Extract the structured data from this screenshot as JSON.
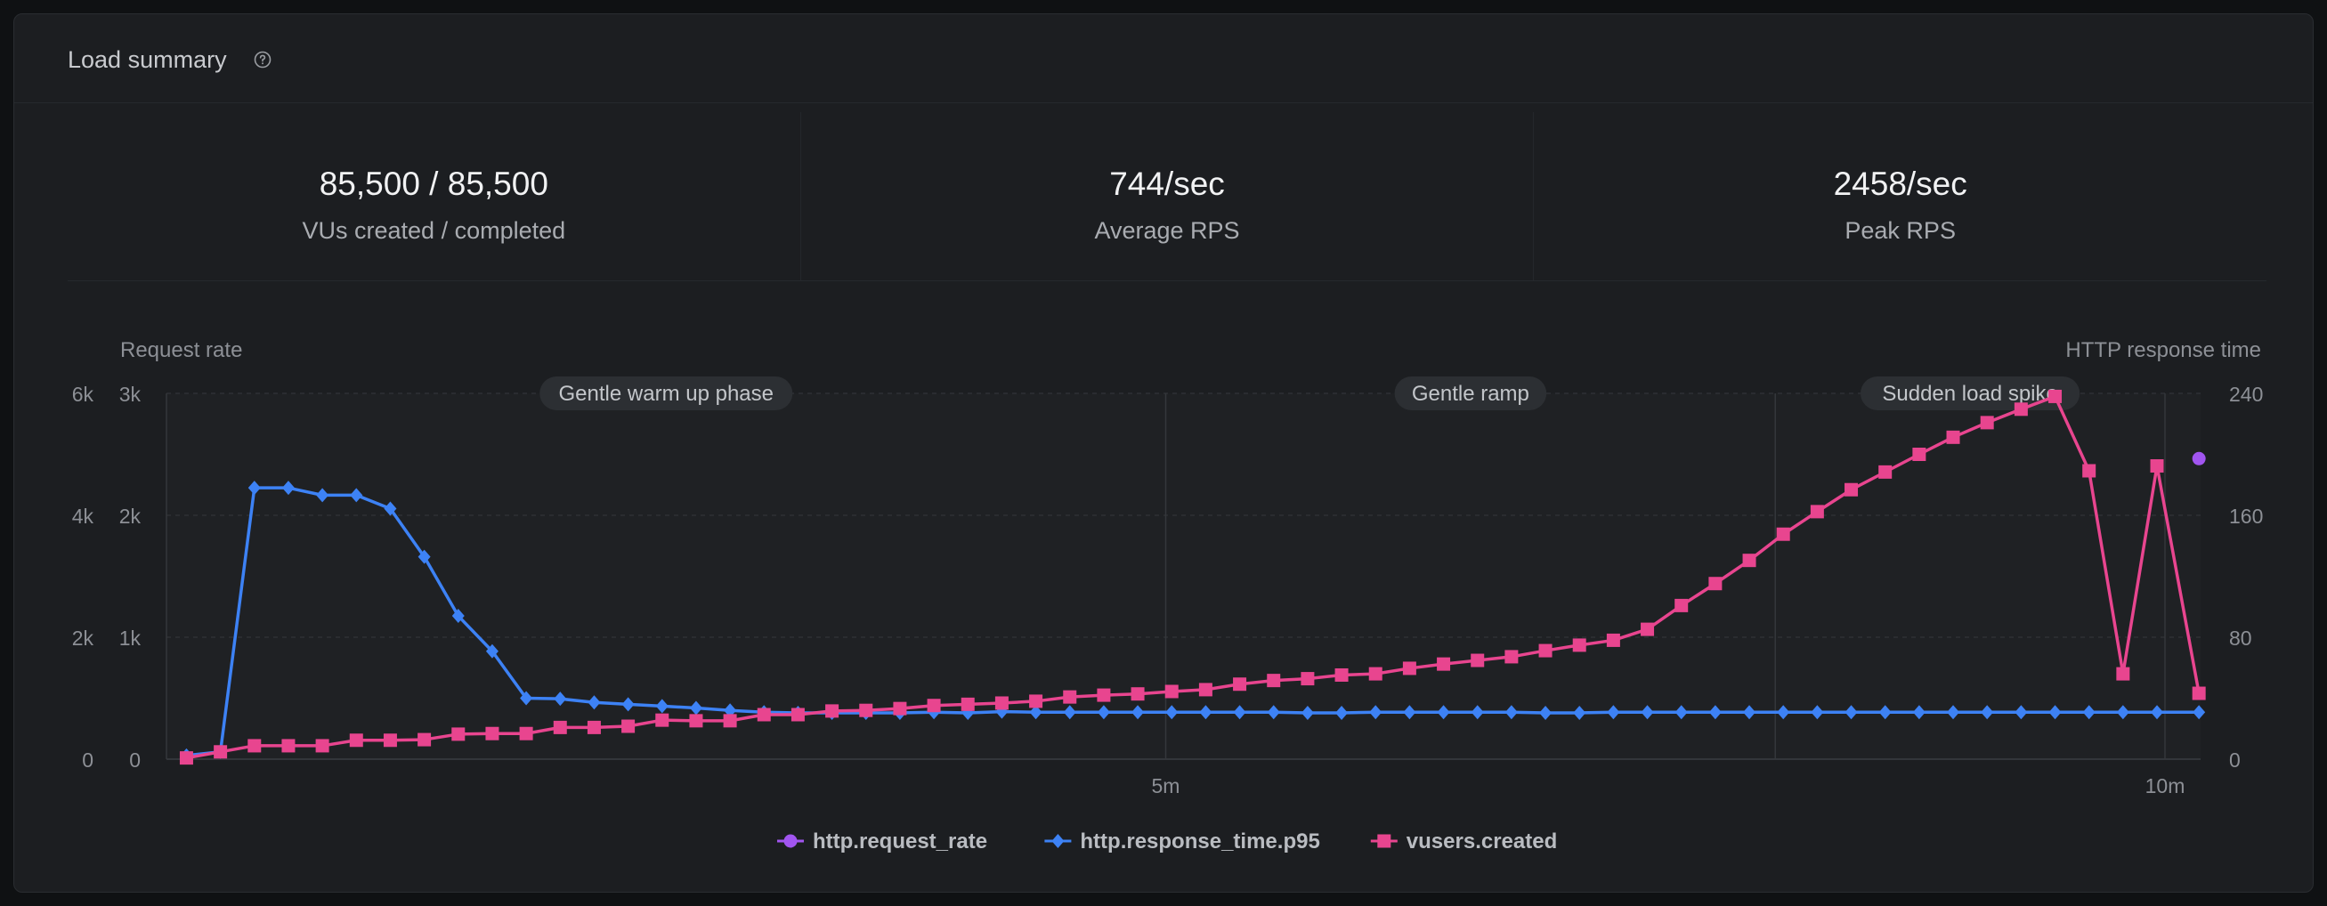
{
  "panel": {
    "title": "Load summary",
    "help_icon": "help-circle-icon"
  },
  "stats": [
    {
      "value": "85,500 / 85,500",
      "label": "VUs created / completed"
    },
    {
      "value": "744/sec",
      "label": "Average RPS"
    },
    {
      "value": "2458/sec",
      "label": "Peak RPS"
    }
  ],
  "colors": {
    "request_rate": "#a155f0",
    "response_time": "#3d82f5",
    "vusers": "#e8458f"
  },
  "chart_data": {
    "type": "line",
    "left_axis_title": "Request rate",
    "right_axis_title": "HTTP response time",
    "y_ticks_outer": [
      "0",
      "2k",
      "4k",
      "6k"
    ],
    "y_ticks_inner": [
      "0",
      "1k",
      "2k",
      "3k"
    ],
    "y_ticks_right": [
      "0",
      "80",
      "160",
      "240"
    ],
    "ylim_outer": [
      0,
      6000
    ],
    "ylim_right": [
      0,
      240
    ],
    "xlim_minutes": [
      0,
      10
    ],
    "x_ticks": [
      {
        "label": "5m",
        "minute": 5
      },
      {
        "label": "10m",
        "minute": 10
      }
    ],
    "phases": [
      {
        "label": "Gentle warm up phase",
        "start_minute": 0,
        "end_minute": 5
      },
      {
        "label": "Gentle ramp",
        "start_minute": 5,
        "end_minute": 8.05
      },
      {
        "label": "Sudden load spike",
        "start_minute": 8.05,
        "end_minute": 10
      }
    ],
    "x_minutes": [
      0.1,
      0.27,
      0.44,
      0.61,
      0.78,
      0.95,
      1.12,
      1.29,
      1.46,
      1.63,
      1.8,
      1.97,
      2.14,
      2.31,
      2.48,
      2.65,
      2.82,
      2.99,
      3.16,
      3.33,
      3.5,
      3.67,
      3.84,
      4.01,
      4.18,
      4.35,
      4.52,
      4.69,
      4.86,
      5.03,
      5.2,
      5.37,
      5.54,
      5.71,
      5.88,
      6.05,
      6.22,
      6.39,
      6.56,
      6.73,
      6.9,
      7.07,
      7.24,
      7.41,
      7.58,
      7.75,
      7.92,
      8.09,
      8.26,
      8.43,
      8.6,
      8.77,
      8.94,
      9.11,
      9.28,
      9.45,
      9.62,
      9.79,
      9.96,
      10.17
    ],
    "series": [
      {
        "name": "http.request_rate",
        "axis": "outer",
        "marker": "circle",
        "x_minutes": [
          10.17
        ],
        "values": [
          4930
        ]
      },
      {
        "name": "http.response_time.p95",
        "axis": "outer",
        "marker": "diamond",
        "values": [
          60,
          120,
          4450,
          4450,
          4330,
          4330,
          4110,
          3320,
          2350,
          1770,
          1000,
          990,
          930,
          900,
          870,
          840,
          800,
          770,
          760,
          760,
          760,
          760,
          770,
          760,
          780,
          770,
          770,
          770,
          770,
          770,
          770,
          770,
          770,
          760,
          760,
          770,
          770,
          770,
          770,
          770,
          760,
          760,
          770,
          770,
          770,
          770,
          770,
          770,
          770,
          770,
          770,
          770,
          770,
          770,
          770,
          770,
          770,
          770,
          770,
          770
        ]
      },
      {
        "name": "vusers.created",
        "axis": "outer",
        "marker": "square",
        "values": [
          20,
          120,
          220,
          220,
          220,
          310,
          310,
          320,
          410,
          420,
          420,
          520,
          520,
          540,
          640,
          630,
          630,
          730,
          730,
          790,
          800,
          830,
          880,
          900,
          920,
          950,
          1020,
          1050,
          1070,
          1110,
          1140,
          1230,
          1290,
          1320,
          1380,
          1400,
          1490,
          1560,
          1620,
          1680,
          1780,
          1870,
          1950,
          2130,
          2520,
          2880,
          3260,
          3690,
          4060,
          4420,
          4710,
          5000,
          5280,
          5520,
          5740,
          5950,
          4730,
          1400,
          4810,
          1080
        ]
      }
    ]
  }
}
